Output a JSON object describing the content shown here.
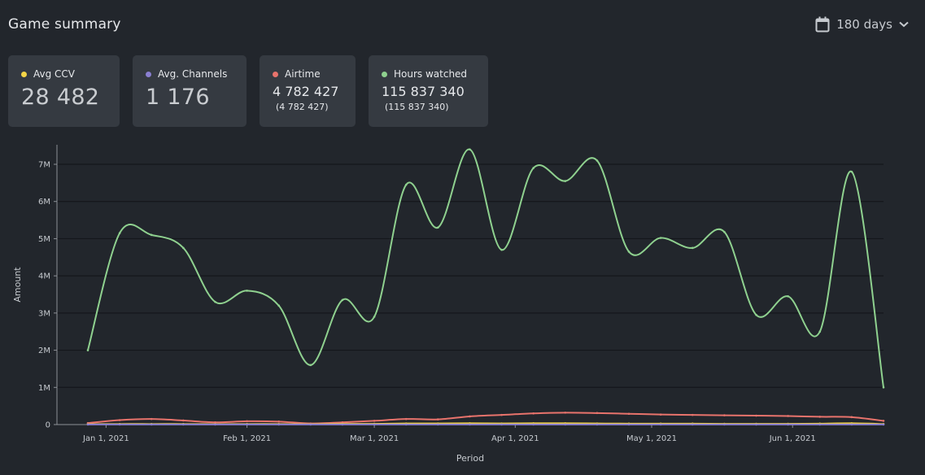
{
  "header": {
    "title": "Game summary",
    "range_label": "180 days",
    "calendar_icon": "calendar-icon",
    "chevron_icon": "chevron-down-icon"
  },
  "cards": [
    {
      "label": "Avg CCV",
      "value": "28 482",
      "color": "#f5d547"
    },
    {
      "label": "Avg. Channels",
      "value": "1 176",
      "color": "#8a7fd1"
    },
    {
      "label": "Airtime",
      "value": "4 782 427",
      "sub": "(4 782 427)",
      "color": "#e8736c"
    },
    {
      "label": "Hours watched",
      "value": "115 837 340",
      "sub": "(115 837 340)",
      "color": "#8fd18f"
    }
  ],
  "chart_data": {
    "type": "line",
    "xlabel": "Period",
    "ylabel": "Amount",
    "y_ticks": [
      "0",
      "1M",
      "2M",
      "3M",
      "4M",
      "5M",
      "6M",
      "7M"
    ],
    "ylim": [
      0,
      7500000
    ],
    "x_ticks": [
      {
        "date": "2021-01-01",
        "label": "Jan 1, 2021"
      },
      {
        "date": "2021-02-01",
        "label": "Feb 1, 2021"
      },
      {
        "date": "2021-03-01",
        "label": "Mar 1, 2021"
      },
      {
        "date": "2021-04-01",
        "label": "Apr 1, 2021"
      },
      {
        "date": "2021-05-01",
        "label": "May 1, 2021"
      },
      {
        "date": "2021-06-01",
        "label": "Jun 1, 2021"
      }
    ],
    "x": [
      "2020-12-28",
      "2021-01-04",
      "2021-01-11",
      "2021-01-18",
      "2021-01-25",
      "2021-02-01",
      "2021-02-08",
      "2021-02-15",
      "2021-02-22",
      "2021-03-01",
      "2021-03-08",
      "2021-03-15",
      "2021-03-22",
      "2021-03-29",
      "2021-04-05",
      "2021-04-12",
      "2021-04-19",
      "2021-04-26",
      "2021-05-03",
      "2021-05-10",
      "2021-05-17",
      "2021-05-24",
      "2021-05-31",
      "2021-06-07",
      "2021-06-14",
      "2021-06-21"
    ],
    "grid": true,
    "series": [
      {
        "name": "Hours watched",
        "color": "#8fd18f",
        "values": [
          2000000,
          5150000,
          5100000,
          4750000,
          3300000,
          3600000,
          3200000,
          1600000,
          3350000,
          2900000,
          6450000,
          5300000,
          7400000,
          4700000,
          6900000,
          6550000,
          7100000,
          4650000,
          5020000,
          4750000,
          5180000,
          2950000,
          3450000,
          2500000,
          6800000,
          1000000
        ]
      },
      {
        "name": "Airtime",
        "color": "#e8736c",
        "values": [
          40000,
          120000,
          150000,
          110000,
          60000,
          90000,
          80000,
          30000,
          60000,
          100000,
          150000,
          140000,
          220000,
          260000,
          300000,
          320000,
          310000,
          290000,
          270000,
          260000,
          250000,
          240000,
          230000,
          210000,
          200000,
          100000
        ]
      },
      {
        "name": "Avg CCV",
        "color": "#f5d547",
        "values": [
          10000,
          15000,
          15000,
          15000,
          12000,
          15000,
          15000,
          10000,
          20000,
          20000,
          30000,
          30000,
          35000,
          30000,
          35000,
          35000,
          30000,
          25000,
          25000,
          25000,
          20000,
          20000,
          20000,
          25000,
          35000,
          15000
        ]
      },
      {
        "name": "Avg. Channels",
        "color": "#8a7fd1",
        "values": [
          2000,
          2500,
          2500,
          2500,
          2000,
          2000,
          2000,
          2000,
          2000,
          2000,
          2500,
          2500,
          3000,
          2500,
          3000,
          3000,
          3000,
          2500,
          2500,
          2500,
          2500,
          2000,
          2000,
          2000,
          2500,
          2000
        ]
      }
    ]
  }
}
